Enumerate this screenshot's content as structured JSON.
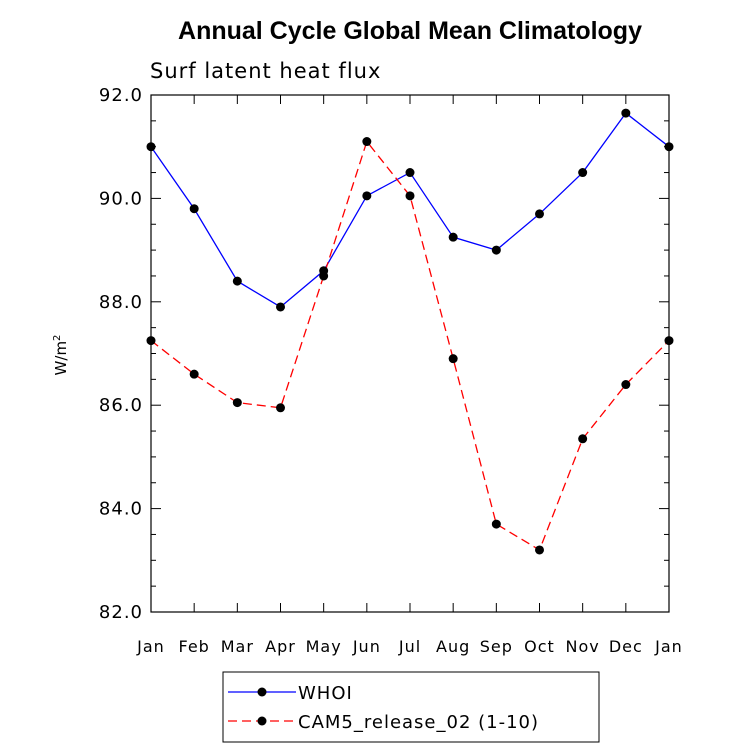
{
  "chart_data": {
    "type": "line",
    "title": "Annual Cycle Global Mean Climatology",
    "subtitle": "Surf latent heat flux",
    "ylabel_base": "W/m",
    "ylabel_sup": "2",
    "ylim": [
      82.0,
      92.0
    ],
    "yticks": [
      "82.0",
      "84.0",
      "86.0",
      "88.0",
      "90.0",
      "92.0"
    ],
    "categories": [
      "Jan",
      "Feb",
      "Mar",
      "Apr",
      "May",
      "Jun",
      "Jul",
      "Aug",
      "Sep",
      "Oct",
      "Nov",
      "Dec",
      "Jan"
    ],
    "grid": false,
    "legend_position": "bottom",
    "series": [
      {
        "name": "WHOI",
        "color": "#0000ff",
        "dash": "solid",
        "values": [
          91.0,
          89.8,
          88.4,
          87.9,
          88.6,
          90.05,
          90.5,
          89.25,
          89.0,
          89.7,
          90.5,
          91.65,
          91.0
        ]
      },
      {
        "name": "CAM5_release_02 (1-10)",
        "color": "#ff0000",
        "dash": "dashed",
        "values": [
          87.25,
          86.6,
          86.05,
          85.95,
          88.5,
          91.1,
          90.05,
          86.9,
          83.7,
          83.2,
          85.35,
          86.4,
          87.25
        ]
      }
    ]
  }
}
